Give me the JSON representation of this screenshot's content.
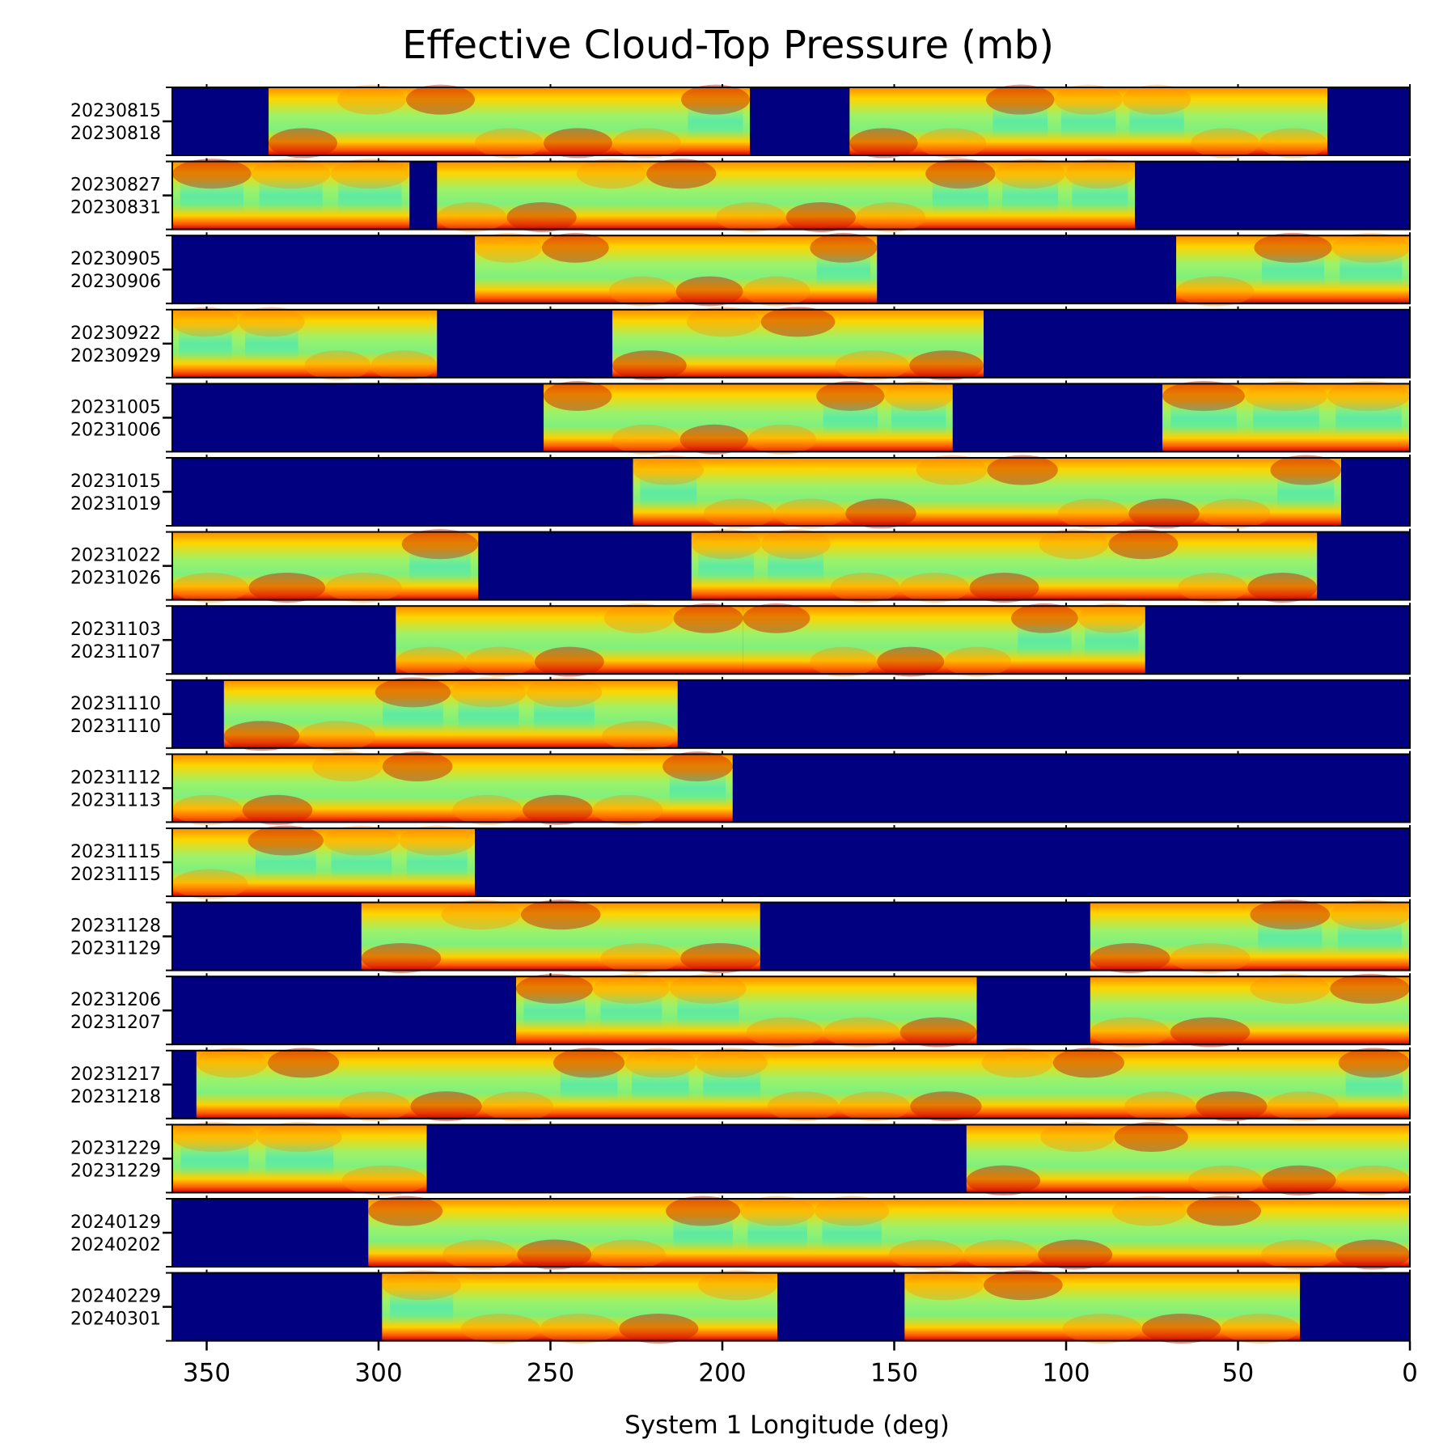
{
  "chart_data": {
    "type": "heatmap",
    "title": "Effective Cloud-Top Pressure (mb)",
    "xlabel": "System 1 Longitude (deg)",
    "ylabel": "",
    "xlim": [
      360,
      0
    ],
    "x_reversed": true,
    "x_ticks": [
      350,
      300,
      250,
      200,
      150,
      100,
      50,
      0
    ],
    "x_tick_labels": [
      "350",
      "300",
      "250",
      "200",
      "150",
      "100",
      "50",
      "0"
    ],
    "colormap": "jet",
    "no_data_color": "#000080",
    "grid": false,
    "legend": "none",
    "panels": [
      {
        "start": "20230815",
        "end": "20230818",
        "coverage_lon": [
          [
            332,
            192
          ],
          [
            163,
            24
          ]
        ]
      },
      {
        "start": "20230827",
        "end": "20230831",
        "coverage_lon": [
          [
            360,
            291
          ],
          [
            283,
            80
          ]
        ]
      },
      {
        "start": "20230905",
        "end": "20230906",
        "coverage_lon": [
          [
            272,
            155
          ],
          [
            68,
            0
          ]
        ]
      },
      {
        "start": "20230922",
        "end": "20230929",
        "coverage_lon": [
          [
            360,
            283
          ],
          [
            232,
            124
          ]
        ]
      },
      {
        "start": "20231005",
        "end": "20231006",
        "coverage_lon": [
          [
            252,
            133
          ],
          [
            72,
            0
          ]
        ]
      },
      {
        "start": "20231015",
        "end": "20231019",
        "coverage_lon": [
          [
            226,
            20
          ]
        ]
      },
      {
        "start": "20231022",
        "end": "20231026",
        "coverage_lon": [
          [
            360,
            271
          ],
          [
            209,
            27
          ]
        ]
      },
      {
        "start": "20231103",
        "end": "20231107",
        "coverage_lon": [
          [
            295,
            194
          ],
          [
            194,
            77
          ]
        ]
      },
      {
        "start": "20231110",
        "end": "20231110",
        "coverage_lon": [
          [
            345,
            213
          ]
        ]
      },
      {
        "start": "20231112",
        "end": "20231113",
        "coverage_lon": [
          [
            360,
            197
          ]
        ]
      },
      {
        "start": "20231115",
        "end": "20231115",
        "coverage_lon": [
          [
            360,
            272
          ]
        ]
      },
      {
        "start": "20231128",
        "end": "20231129",
        "coverage_lon": [
          [
            305,
            189
          ],
          [
            93,
            0
          ]
        ]
      },
      {
        "start": "20231206",
        "end": "20231207",
        "coverage_lon": [
          [
            260,
            126
          ],
          [
            93,
            0
          ]
        ]
      },
      {
        "start": "20231217",
        "end": "20231218",
        "coverage_lon": [
          [
            353,
            0
          ]
        ]
      },
      {
        "start": "20231229",
        "end": "20231229",
        "coverage_lon": [
          [
            360,
            286
          ],
          [
            129,
            0
          ]
        ]
      },
      {
        "start": "20240129",
        "end": "20240202",
        "coverage_lon": [
          [
            303,
            0
          ]
        ]
      },
      {
        "start": "20240229",
        "end": "20240301",
        "coverage_lon": [
          [
            299,
            184
          ],
          [
            147,
            32
          ]
        ]
      }
    ]
  }
}
